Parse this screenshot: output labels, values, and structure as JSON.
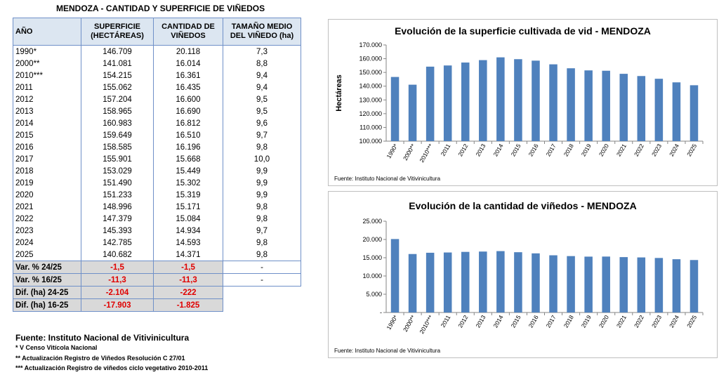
{
  "table": {
    "title": "MENDOZA - CANTIDAD Y SUPERFICIE DE VIÑEDOS",
    "headers": {
      "anio": "AÑO",
      "sup_1": "SUPERFICIE",
      "sup_2": "(HECTÁREAS)",
      "cant_1": "CANTIDAD DE",
      "cant_2": "VIÑEDOS",
      "tam_1": "TAMAÑO MEDIO",
      "tam_2": "DEL VIÑEDO (ha)"
    },
    "rows": [
      {
        "year": "1990*",
        "sup": "146.709",
        "cant": "20.118",
        "tam": "7,3"
      },
      {
        "year": "2000**",
        "sup": "141.081",
        "cant": "16.014",
        "tam": "8,8"
      },
      {
        "year": "2010***",
        "sup": "154.215",
        "cant": "16.361",
        "tam": "9,4"
      },
      {
        "year": "2011",
        "sup": "155.062",
        "cant": "16.435",
        "tam": "9,4"
      },
      {
        "year": "2012",
        "sup": "157.204",
        "cant": "16.600",
        "tam": "9,5"
      },
      {
        "year": "2013",
        "sup": "158.965",
        "cant": "16.690",
        "tam": "9,5"
      },
      {
        "year": "2014",
        "sup": "160.983",
        "cant": "16.812",
        "tam": "9,6"
      },
      {
        "year": "2015",
        "sup": "159.649",
        "cant": "16.510",
        "tam": "9,7"
      },
      {
        "year": "2016",
        "sup": "158.585",
        "cant": "16.196",
        "tam": "9,8"
      },
      {
        "year": "2017",
        "sup": "155.901",
        "cant": "15.668",
        "tam": "10,0"
      },
      {
        "year": "2018",
        "sup": "153.029",
        "cant": "15.449",
        "tam": "9,9"
      },
      {
        "year": "2019",
        "sup": "151.490",
        "cant": "15.302",
        "tam": "9,9"
      },
      {
        "year": "2020",
        "sup": "151.233",
        "cant": "15.319",
        "tam": "9,9"
      },
      {
        "year": "2021",
        "sup": "148.996",
        "cant": "15.171",
        "tam": "9,8"
      },
      {
        "year": "2022",
        "sup": "147.379",
        "cant": "15.084",
        "tam": "9,8"
      },
      {
        "year": "2023",
        "sup": "145.393",
        "cant": "14.934",
        "tam": "9,7"
      },
      {
        "year": "2024",
        "sup": "142.785",
        "cant": "14.593",
        "tam": "9,8"
      },
      {
        "year": "2025",
        "sup": "140.682",
        "cant": "14.371",
        "tam": "9,8"
      }
    ],
    "summary": [
      {
        "label": "Var. % 24/25",
        "sup": "-1,5",
        "cant": "-1,5",
        "tam": "-"
      },
      {
        "label": "Var. % 16/25",
        "sup": "-11,3",
        "cant": "-11,3",
        "tam": "-"
      },
      {
        "label": "Dif. (ha) 24-25",
        "sup": "-2.104",
        "cant": "-222"
      },
      {
        "label": "Dif. (ha) 16-25",
        "sup": "-17.903",
        "cant": "-1.825"
      }
    ],
    "source": "Fuente: Instituto Nacional de Vitivinicultura",
    "notes": [
      "* V Censo Vitícola Nacional",
      "**  Actualización Registro de Viñedos Resolución C 27/01",
      "***  Actualización Registro de viñedos ciclo vegetativo 2010-2011"
    ]
  },
  "colors": {
    "bar": "#4f81bd",
    "header_bg": "#dce6f1",
    "summary_bg": "#d9d9d9",
    "negative": "#e00000",
    "border": "#6f90c8"
  },
  "chart_data": [
    {
      "type": "bar",
      "title": "Evolución de la superficie cultivada de vid - MENDOZA",
      "ylabel": "Hectáreas",
      "xlabel": "",
      "categories": [
        "1990*",
        "2000**",
        "2010***",
        "2011",
        "2012",
        "2013",
        "2014",
        "2015",
        "2016",
        "2017",
        "2018",
        "2019",
        "2020",
        "2021",
        "2022",
        "2023",
        "2024",
        "2025"
      ],
      "values": [
        146709,
        141081,
        154215,
        155062,
        157204,
        158965,
        160983,
        159649,
        158585,
        155901,
        153029,
        151490,
        151233,
        148996,
        147379,
        145393,
        142785,
        140682
      ],
      "ylim": [
        100000,
        170000
      ],
      "yticks": [
        "100.000",
        "110.000",
        "120.000",
        "130.000",
        "140.000",
        "150.000",
        "160.000",
        "170.000"
      ],
      "grid": false,
      "source": "Fuente: Instituto Nacional de Vitivinicultura"
    },
    {
      "type": "bar",
      "title": "Evolución de la cantidad de viñedos - MENDOZA",
      "ylabel": "",
      "xlabel": "",
      "categories": [
        "1990*",
        "2000**",
        "2010***",
        "2011",
        "2012",
        "2013",
        "2014",
        "2015",
        "2016",
        "2017",
        "2018",
        "2019",
        "2020",
        "2021",
        "2022",
        "2023",
        "2024",
        "2025"
      ],
      "values": [
        20118,
        16014,
        16361,
        16435,
        16600,
        16690,
        16812,
        16510,
        16196,
        15668,
        15449,
        15302,
        15319,
        15171,
        15084,
        14934,
        14593,
        14371
      ],
      "ylim": [
        0,
        25000
      ],
      "yticks": [
        "-",
        "5.000",
        "10.000",
        "15.000",
        "20.000",
        "25.000"
      ],
      "grid": false,
      "source": "Fuente: Instituto Nacional de Vitivinicultura"
    }
  ]
}
